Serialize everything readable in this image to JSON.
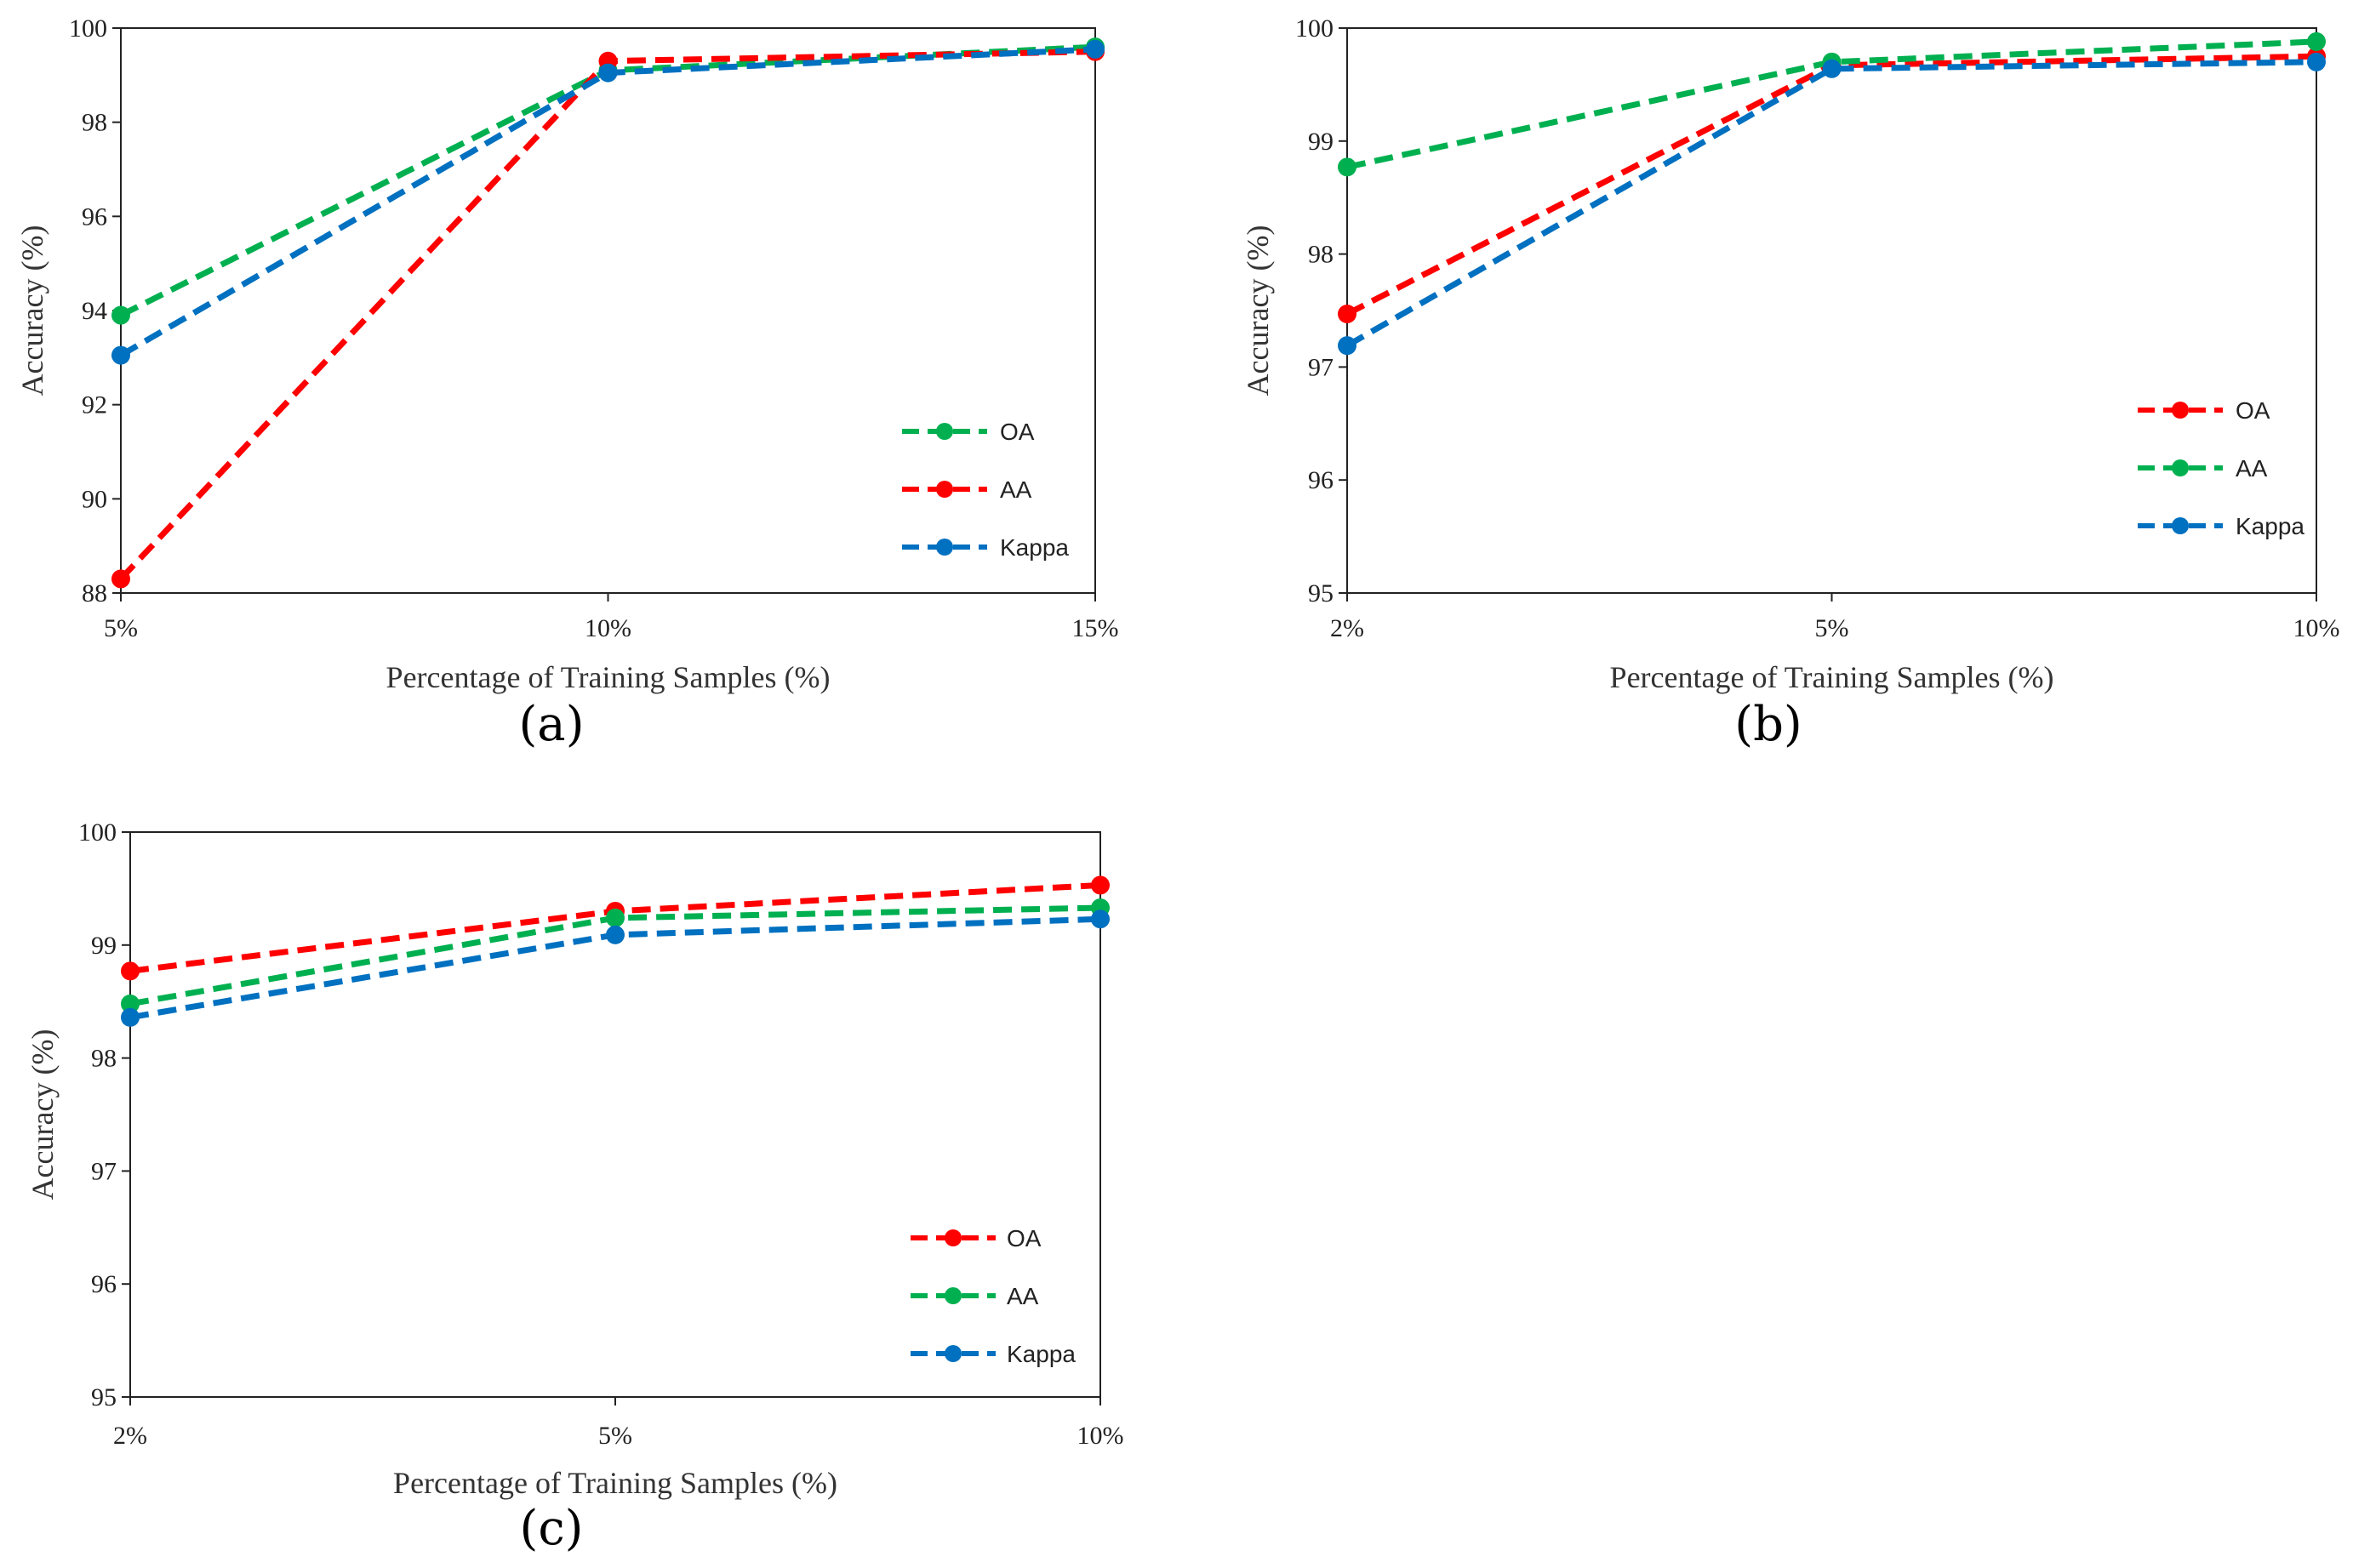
{
  "chart_data": [
    {
      "id": "a",
      "type": "line",
      "panel_label": "(a)",
      "xlabel": "Percentage of Training Samples (%)",
      "ylabel": "Accuracy (%)",
      "categories": [
        "5%",
        "10%",
        "15%"
      ],
      "ylim": [
        88,
        100
      ],
      "yticks": [
        88,
        90,
        92,
        94,
        96,
        98,
        100
      ],
      "legend_position": "bottom-right",
      "series": [
        {
          "name": "OA",
          "color": "#00b050",
          "values": [
            93.9,
            99.1,
            99.6
          ]
        },
        {
          "name": "AA",
          "color": "#ff0000",
          "values": [
            88.3,
            99.3,
            99.5
          ]
        },
        {
          "name": "Kappa",
          "color": "#0070c0",
          "values": [
            93.05,
            99.05,
            99.55
          ]
        }
      ]
    },
    {
      "id": "b",
      "type": "line",
      "panel_label": "(b)",
      "xlabel": "Percentage of Training Samples (%)",
      "ylabel": "Accuracy (%)",
      "categories": [
        "2%",
        "5%",
        "10%"
      ],
      "ylim": [
        95,
        100
      ],
      "yticks": [
        95,
        96,
        97,
        98,
        99,
        100
      ],
      "legend_position": "bottom-right",
      "series": [
        {
          "name": "OA",
          "color": "#ff0000",
          "values": [
            97.47,
            99.67,
            99.75
          ]
        },
        {
          "name": "AA",
          "color": "#00b050",
          "values": [
            98.77,
            99.7,
            99.88
          ]
        },
        {
          "name": "Kappa",
          "color": "#0070c0",
          "values": [
            97.19,
            99.64,
            99.7
          ]
        }
      ]
    },
    {
      "id": "c",
      "type": "line",
      "panel_label": "(c)",
      "xlabel": "Percentage of Training Samples (%)",
      "ylabel": "Accuracy (%)",
      "categories": [
        "2%",
        "5%",
        "10%"
      ],
      "ylim": [
        95,
        100
      ],
      "yticks": [
        95,
        96,
        97,
        98,
        99,
        100
      ],
      "legend_position": "bottom-right",
      "series": [
        {
          "name": "OA",
          "color": "#ff0000",
          "values": [
            98.77,
            99.3,
            99.53
          ]
        },
        {
          "name": "AA",
          "color": "#00b050",
          "values": [
            98.48,
            99.24,
            99.33
          ]
        },
        {
          "name": "Kappa",
          "color": "#0070c0",
          "values": [
            98.36,
            99.09,
            99.23
          ]
        }
      ]
    }
  ]
}
